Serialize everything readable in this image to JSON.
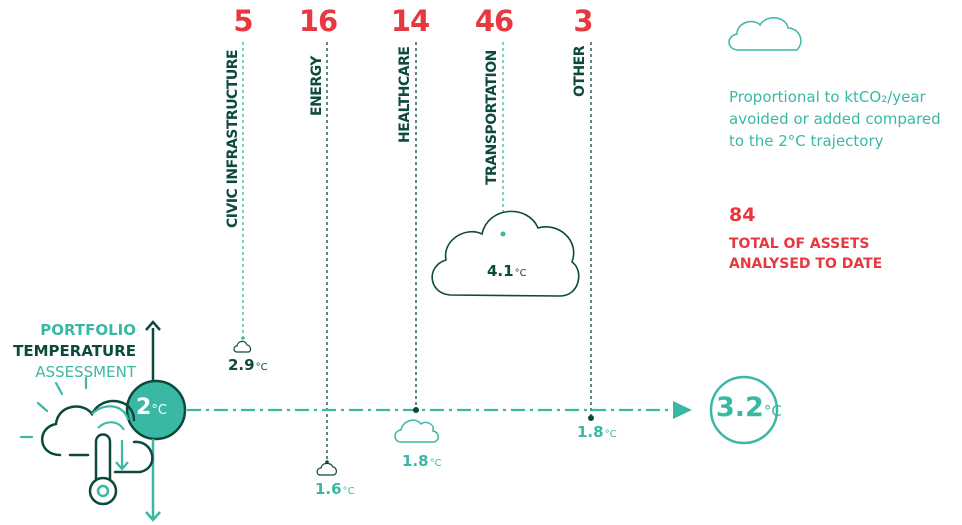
{
  "sectors": [
    {
      "count": "5",
      "label": "CIVIC INFRASTRUCTURE",
      "temp": "2.9",
      "unit": "°C"
    },
    {
      "count": "16",
      "label": "ENERGY",
      "temp": "1.6",
      "unit": "°C"
    },
    {
      "count": "14",
      "label": "HEALTHCARE",
      "temp": "1.8",
      "unit": "°C"
    },
    {
      "count": "46",
      "label": "TRANSPORTATION",
      "temp": "4.1",
      "unit": "°C"
    },
    {
      "count": "3",
      "label": "OTHER",
      "temp": "1.8",
      "unit": "°C"
    }
  ],
  "legend": {
    "text": "Proportional to ktCO₂/year avoided or added compared to the 2°C trajectory"
  },
  "total": {
    "value": "84",
    "label": "TOTAL OF ASSETS ANALYSED TO DATE"
  },
  "portfolio": {
    "line1": "PORTFOLIO",
    "line2": "TEMPERATURE",
    "line3": "ASSESSMENT",
    "start_value": "2",
    "end_value": "3.2",
    "unit": "°C"
  },
  "colors": {
    "red": "#e8383f",
    "teal": "#3bb8a4",
    "dark_green": "#0b4a3d"
  },
  "icons": [
    "cloud-icon",
    "thermometer-icon",
    "sun-rays-icon",
    "arrow-up-icon",
    "arrow-down-icon",
    "arrow-right-icon"
  ]
}
